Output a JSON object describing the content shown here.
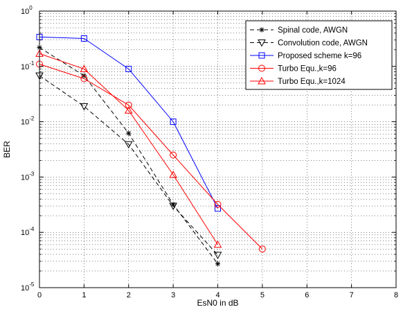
{
  "chart_data": {
    "type": "line",
    "title": "",
    "xlabel": "EsN0 in dB",
    "ylabel": "BER",
    "xlim": [
      0,
      8
    ],
    "ylim": [
      1e-05,
      1
    ],
    "yscale": "log",
    "grid": "dotted",
    "legend_position": "top-right",
    "x_ticks": [
      0,
      1,
      2,
      3,
      4,
      5,
      6,
      7,
      8
    ],
    "y_ticks": [
      1e-05,
      0.0001,
      0.001,
      0.01,
      0.1,
      1
    ],
    "y_tick_labels": [
      {
        "base": "10",
        "exp": "-5"
      },
      {
        "base": "10",
        "exp": "-4"
      },
      {
        "base": "10",
        "exp": "-3"
      },
      {
        "base": "10",
        "exp": "-2"
      },
      {
        "base": "10",
        "exp": "-1"
      },
      {
        "base": "10",
        "exp": "0"
      }
    ],
    "series": [
      {
        "name": "Spinal code, AWGN",
        "color": "#000000",
        "dash": "dashed",
        "marker": "asterisk",
        "x": [
          0,
          1,
          2,
          3,
          4
        ],
        "y": [
          0.22,
          0.068,
          0.0062,
          0.00032,
          2.7e-05
        ]
      },
      {
        "name": "Convolution code, AWGN",
        "color": "#000000",
        "dash": "dashed",
        "marker": "triangle-down",
        "x": [
          0,
          1,
          2,
          3,
          4
        ],
        "y": [
          0.068,
          0.019,
          0.0039,
          0.0003,
          3.9e-05
        ]
      },
      {
        "name": "Proposed scheme k=96",
        "color": "#0000ff",
        "dash": "solid",
        "marker": "square",
        "x": [
          0,
          1,
          2,
          3,
          4
        ],
        "y": [
          0.34,
          0.32,
          0.09,
          0.01,
          0.00027
        ]
      },
      {
        "name": "Turbo Equ.,k=96",
        "color": "#ff0000",
        "dash": "solid",
        "marker": "circle",
        "x": [
          0,
          1,
          2,
          3,
          4,
          5
        ],
        "y": [
          0.11,
          0.06,
          0.02,
          0.0025,
          0.00032,
          5e-05
        ]
      },
      {
        "name": "Turbo Equ.,k=1024",
        "color": "#ff0000",
        "dash": "solid",
        "marker": "triangle-up",
        "x": [
          0,
          1,
          2,
          3,
          4
        ],
        "y": [
          0.17,
          0.09,
          0.016,
          0.0011,
          6e-05
        ]
      }
    ]
  }
}
